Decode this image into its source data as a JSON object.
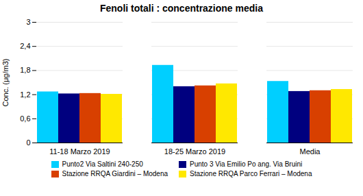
{
  "chart_data": {
    "type": "bar",
    "title": "Fenoli totali : concentrazione media",
    "ylabel": "Conc. (μg/m3)",
    "categories": [
      "11-18 Marzo 2019",
      "18-25 Marzo 2019",
      "Media"
    ],
    "series": [
      {
        "name": "Punto2 Via Saltini 240-250",
        "color": "#00CFFF",
        "values": [
          1.27,
          1.93,
          1.53
        ]
      },
      {
        "name": "Punto 3 Via Emilio Po ang. Via Bruini",
        "color": "#00007F",
        "values": [
          1.22,
          1.4,
          1.28
        ]
      },
      {
        "name": "Stazione RRQA Giardini – Modena",
        "color": "#D84000",
        "values": [
          1.23,
          1.42,
          1.3
        ]
      },
      {
        "name": "Stazione RRQA Parco Ferrari – Modena",
        "color": "#FFE800",
        "values": [
          1.21,
          1.47,
          1.33
        ]
      }
    ],
    "ylim": [
      0,
      3.0
    ],
    "yticks": [
      0,
      {
        "value": 0.6,
        "label": "0,6"
      },
      {
        "value": 1.2,
        "label": "1,2"
      },
      {
        "value": 1.8,
        "label": "1,8"
      },
      {
        "value": 2.4,
        "label": "2,4"
      },
      3
    ],
    "grid": true,
    "legend": "bottom"
  }
}
